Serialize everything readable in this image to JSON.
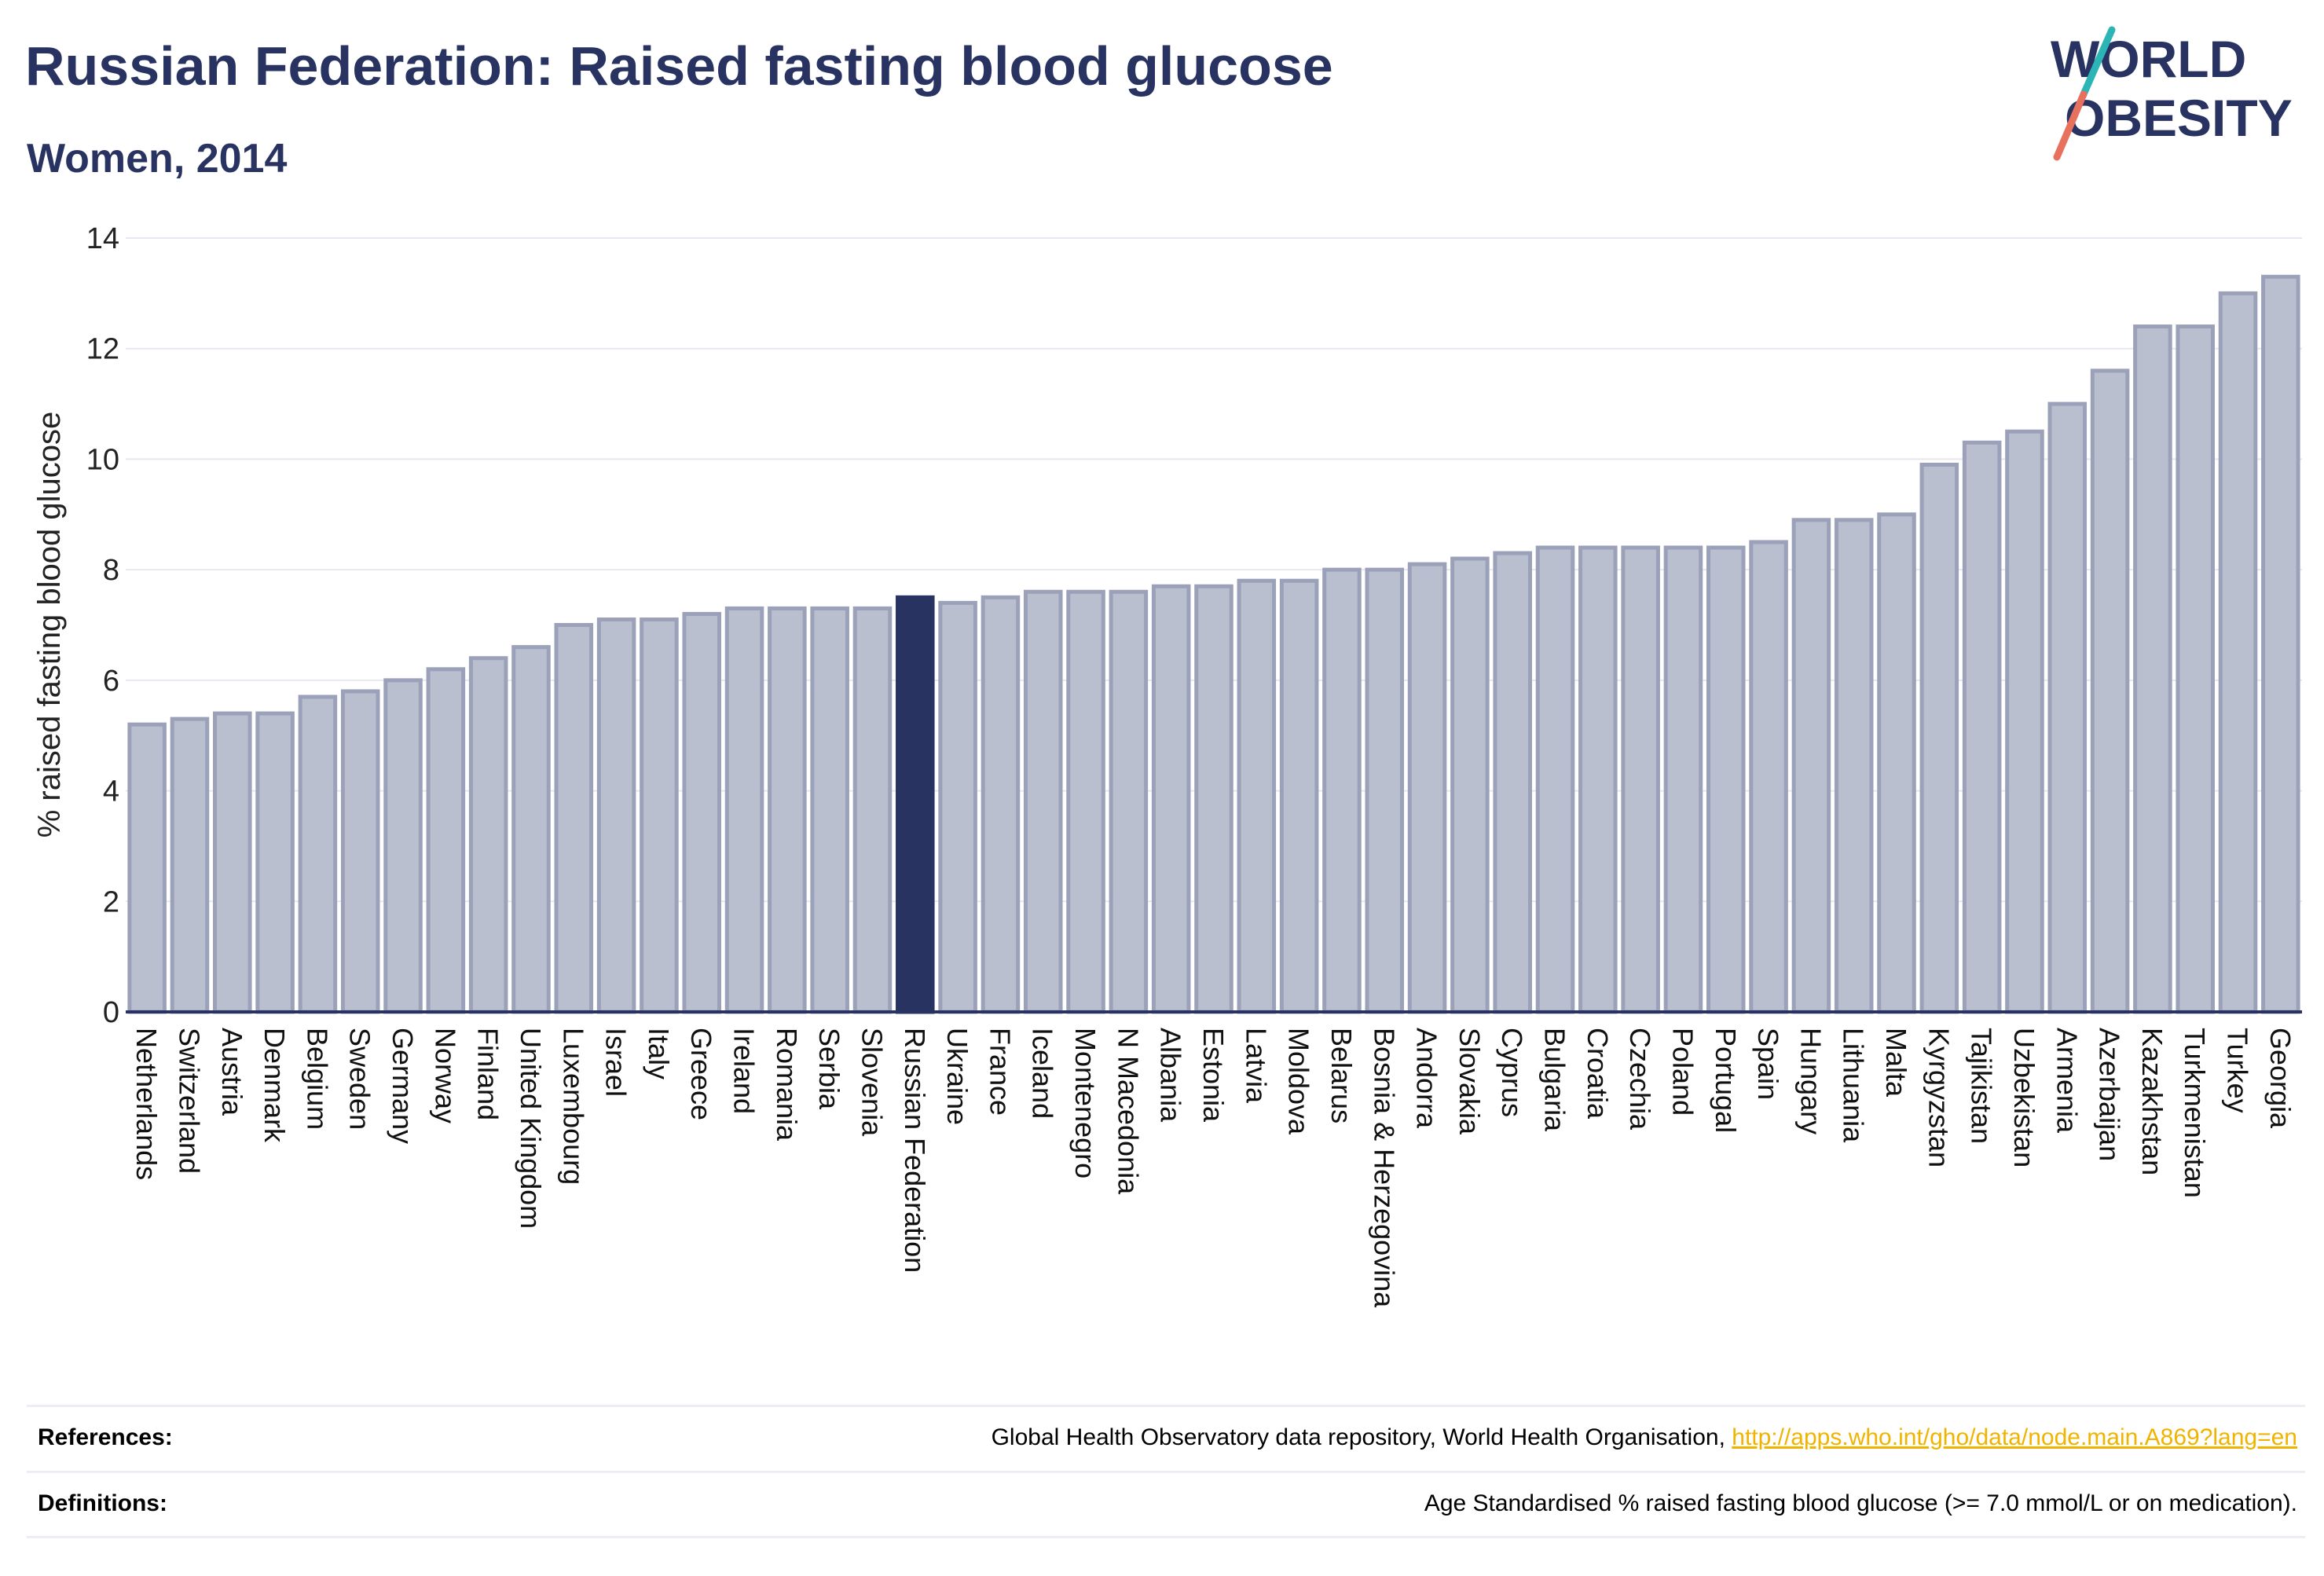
{
  "header": {
    "title": "Russian Federation: Raised fasting blood glucose",
    "subtitle": "Women, 2014"
  },
  "logo": {
    "line1": "WORLD",
    "line2": "OBESITY"
  },
  "colors": {
    "highlight_bar": "#283361",
    "bar_fill": "#b9bfcf",
    "bar_stroke": "#9aa1b8",
    "accent_teal": "#2cb5b5",
    "accent_coral": "#e8715e",
    "link": "#f0b400"
  },
  "chart_data": {
    "type": "bar",
    "ylabel": "% raised fasting blood glucose",
    "xlabel": "",
    "ylim": [
      0,
      14
    ],
    "yticks": [
      0,
      2,
      4,
      6,
      8,
      10,
      12,
      14
    ],
    "grid": true,
    "highlight": "Russian Federation",
    "categories": [
      "Netherlands",
      "Switzerland",
      "Austria",
      "Denmark",
      "Belgium",
      "Sweden",
      "Germany",
      "Norway",
      "Finland",
      "United Kingdom",
      "Luxembourg",
      "Israel",
      "Italy",
      "Greece",
      "Ireland",
      "Romania",
      "Serbia",
      "Slovenia",
      "Russian Federation",
      "Ukraine",
      "France",
      "Iceland",
      "Montenegro",
      "N Macedonia",
      "Albania",
      "Estonia",
      "Latvia",
      "Moldova",
      "Belarus",
      "Bosnia & Herzegovina",
      "Andorra",
      "Slovakia",
      "Cyprus",
      "Bulgaria",
      "Croatia",
      "Czechia",
      "Poland",
      "Portugal",
      "Spain",
      "Hungary",
      "Lithuania",
      "Malta",
      "Kyrgyzstan",
      "Tajikistan",
      "Uzbekistan",
      "Armenia",
      "Azerbaijan",
      "Kazakhstan",
      "Turkmenistan",
      "Turkey",
      "Georgia"
    ],
    "values": [
      5.2,
      5.3,
      5.4,
      5.4,
      5.7,
      5.8,
      6.0,
      6.2,
      6.4,
      6.6,
      7.0,
      7.1,
      7.1,
      7.2,
      7.3,
      7.3,
      7.3,
      7.3,
      7.5,
      7.4,
      7.5,
      7.6,
      7.6,
      7.6,
      7.7,
      7.7,
      7.8,
      7.8,
      8.0,
      8.0,
      8.1,
      8.2,
      8.3,
      8.4,
      8.4,
      8.4,
      8.4,
      8.4,
      8.5,
      8.9,
      8.9,
      9.0,
      9.9,
      10.3,
      10.5,
      11.0,
      11.6,
      12.4,
      12.4,
      13.0,
      13.3
    ]
  },
  "footer": {
    "references_label": "References:",
    "references_text": "Global Health Observatory data repository, World Health Organisation, ",
    "references_link": "http://apps.who.int/gho/data/node.main.A869?lang=en",
    "definitions_label": "Definitions:",
    "definitions_text": "Age Standardised % raised fasting blood glucose (>= 7.0 mmol/L or on medication)."
  }
}
